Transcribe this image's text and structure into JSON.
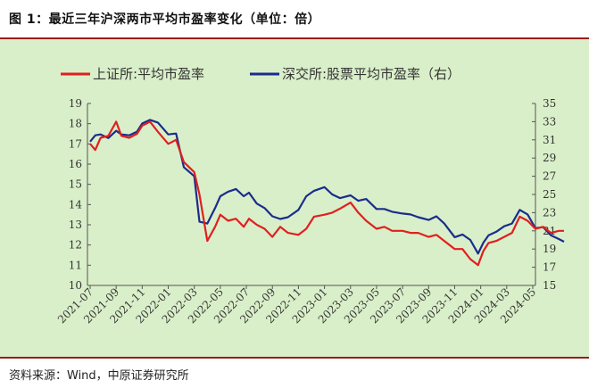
{
  "title": "图 1：最近三年沪深两市平均市盈率变化（单位：倍）",
  "source": "资料来源：Wind，中原证券研究所",
  "colors": {
    "accent": "#9b1c1c",
    "background": "#d9efc9",
    "sh": "#e02020",
    "sz": "#1b2c8c"
  },
  "chart_data": {
    "type": "line",
    "title": "最近三年沪深两市平均市盈率变化（单位：倍）",
    "x_tick_labels": [
      "2021-07",
      "2021-09",
      "2021-11",
      "2022-01",
      "2022-03",
      "2022-05",
      "2022-07",
      "2022-09",
      "2022-11",
      "2023-01",
      "2023-03",
      "2023-05",
      "2023-07",
      "2023-09",
      "2023-11",
      "2024-01",
      "2024-03",
      "2024-05"
    ],
    "y_left": {
      "range": [
        10,
        19
      ],
      "ticks": [
        "19",
        "18",
        "17",
        "16",
        "15",
        "14",
        "13",
        "12",
        "11",
        "10"
      ]
    },
    "y_right": {
      "range": [
        15,
        35
      ],
      "ticks": [
        "35",
        "33",
        "31",
        "29",
        "27",
        "25",
        "23",
        "21",
        "19",
        "17",
        "15"
      ]
    },
    "grid": false,
    "legend_position": "top",
    "series": [
      {
        "name": "上证所:平均市盈率",
        "axis": "left",
        "color": "#e02020",
        "x": [
          0,
          0.2,
          0.4,
          0.7,
          1.0,
          1.2,
          1.5,
          1.8,
          2.0,
          2.3,
          2.6,
          3.0,
          3.3,
          3.6,
          4.0,
          4.2,
          4.5,
          4.8,
          5.0,
          5.3,
          5.6,
          5.9,
          6.1,
          6.4,
          6.7,
          7.0,
          7.3,
          7.6,
          8.0,
          8.3,
          8.6,
          9.0,
          9.3,
          9.6,
          10.0,
          10.3,
          10.6,
          11.0,
          11.3,
          11.6,
          12.0,
          12.3,
          12.6,
          13.0,
          13.3,
          13.6,
          14.0,
          14.3,
          14.6,
          14.9,
          15.1,
          15.3,
          15.6,
          15.9,
          16.2,
          16.5,
          16.8,
          17.1,
          17.4,
          17.7,
          18.0,
          18.2
        ],
        "values": [
          17.0,
          16.7,
          17.3,
          17.4,
          18.1,
          17.4,
          17.3,
          17.5,
          17.9,
          18.1,
          17.6,
          17.0,
          17.2,
          16.1,
          15.6,
          14.5,
          12.2,
          12.9,
          13.5,
          13.2,
          13.3,
          12.9,
          13.3,
          13.0,
          12.8,
          12.4,
          12.9,
          12.6,
          12.5,
          12.8,
          13.4,
          13.5,
          13.6,
          13.8,
          14.1,
          13.6,
          13.2,
          12.8,
          12.9,
          12.7,
          12.7,
          12.6,
          12.6,
          12.4,
          12.5,
          12.2,
          11.8,
          11.8,
          11.3,
          11.0,
          11.7,
          12.1,
          12.2,
          12.4,
          12.6,
          13.4,
          13.2,
          12.8,
          12.9,
          12.6,
          12.7,
          12.7
        ]
      },
      {
        "name": "深交所:股票平均市盈率（右）",
        "axis": "right",
        "color": "#1b2c8c",
        "x": [
          0,
          0.2,
          0.4,
          0.7,
          1.0,
          1.2,
          1.5,
          1.8,
          2.0,
          2.3,
          2.6,
          3.0,
          3.3,
          3.6,
          4.0,
          4.2,
          4.5,
          4.8,
          5.0,
          5.3,
          5.6,
          5.9,
          6.1,
          6.4,
          6.7,
          7.0,
          7.3,
          7.6,
          8.0,
          8.3,
          8.6,
          9.0,
          9.3,
          9.6,
          10.0,
          10.3,
          10.6,
          11.0,
          11.3,
          11.6,
          12.0,
          12.3,
          12.6,
          13.0,
          13.3,
          13.6,
          14.0,
          14.3,
          14.6,
          14.9,
          15.1,
          15.3,
          15.6,
          15.9,
          16.2,
          16.5,
          16.8,
          17.1,
          17.4,
          17.7,
          18.0,
          18.2
        ],
        "values": [
          30.8,
          31.5,
          31.6,
          31.2,
          32.0,
          31.6,
          31.5,
          31.9,
          32.8,
          33.2,
          32.9,
          31.6,
          31.7,
          28.0,
          27.0,
          22.0,
          21.8,
          23.5,
          24.8,
          25.3,
          25.6,
          24.8,
          25.2,
          24.0,
          23.5,
          22.6,
          22.3,
          22.5,
          23.3,
          24.8,
          25.4,
          25.8,
          25.0,
          24.6,
          24.9,
          24.3,
          24.5,
          23.4,
          23.4,
          23.1,
          22.9,
          22.8,
          22.5,
          22.2,
          22.6,
          21.8,
          20.3,
          20.6,
          20.0,
          18.5,
          19.7,
          20.5,
          20.9,
          21.5,
          21.8,
          23.3,
          22.8,
          21.3,
          21.4,
          20.5,
          20.1,
          19.8
        ]
      }
    ]
  }
}
